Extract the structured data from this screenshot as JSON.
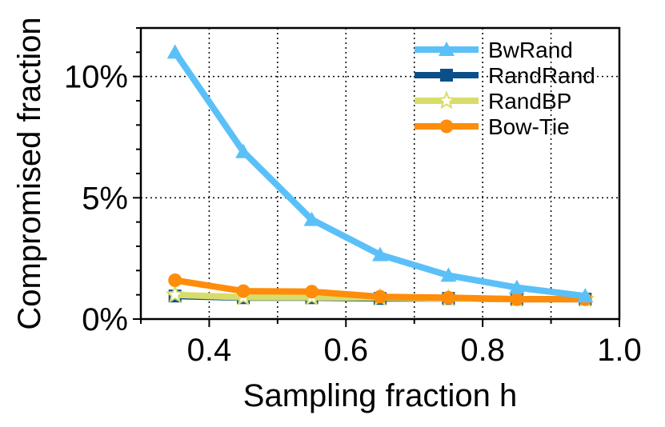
{
  "chart_data": {
    "type": "line",
    "title": "",
    "xlabel": "Sampling fraction h",
    "ylabel": "Compromised fraction",
    "xlim": [
      0.3,
      1.0
    ],
    "ylim": [
      0,
      12
    ],
    "x": [
      0.35,
      0.45,
      0.55,
      0.65,
      0.75,
      0.85,
      0.95
    ],
    "xticks": [
      0.4,
      0.6,
      0.8,
      1.0
    ],
    "xtick_labels": [
      "0.4",
      "0.6",
      "0.8",
      "1.0"
    ],
    "yticks": [
      0,
      5,
      10
    ],
    "ytick_labels": [
      "0%",
      "5%",
      "10%"
    ],
    "grid": true,
    "legend_position": "top-right",
    "series": [
      {
        "name": "BwRand",
        "color": "#5bc0f8",
        "marker": "triangle",
        "values": [
          11.0,
          6.9,
          4.1,
          2.65,
          1.8,
          1.3,
          0.95
        ]
      },
      {
        "name": "RandRand",
        "color": "#0b4f8a",
        "marker": "square",
        "values": [
          0.95,
          0.88,
          0.88,
          0.85,
          0.85,
          0.82,
          0.82
        ]
      },
      {
        "name": "RandBP",
        "color": "#d8dc6a",
        "marker": "star",
        "values": [
          1.0,
          0.9,
          0.9,
          0.88,
          0.85,
          0.82,
          0.82
        ]
      },
      {
        "name": "Bow-Tie",
        "color": "#ff8c0a",
        "marker": "circle",
        "values": [
          1.6,
          1.15,
          1.13,
          0.92,
          0.88,
          0.82,
          0.82
        ]
      }
    ]
  }
}
